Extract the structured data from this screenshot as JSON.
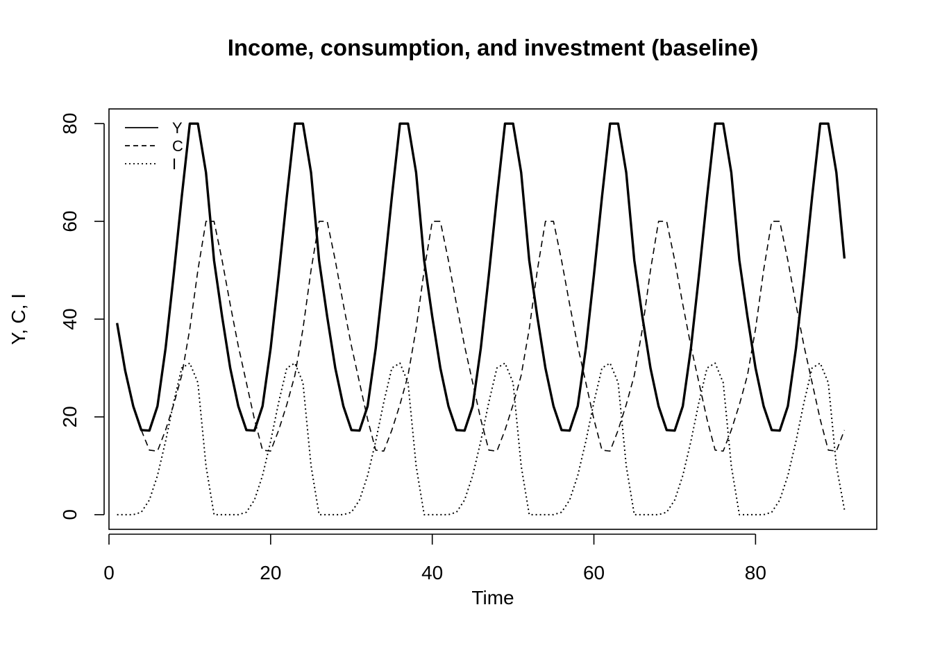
{
  "chart_data": {
    "type": "line",
    "title": "Income, consumption, and investment (baseline)",
    "xlabel": "Time",
    "ylabel": "Y, C, I",
    "xlim": [
      0,
      95
    ],
    "ylim": [
      -3,
      83
    ],
    "x_ticks": [
      0,
      20,
      40,
      60,
      80
    ],
    "y_ticks": [
      0,
      20,
      40,
      60,
      80
    ],
    "grid": false,
    "legend_position": "top-left",
    "cycle_period": 13,
    "x": [
      1,
      2,
      3,
      4,
      5,
      6,
      7,
      8,
      9,
      10,
      11,
      12,
      13,
      14,
      15,
      16,
      17,
      18,
      19,
      20,
      21,
      22,
      23,
      24,
      25,
      26,
      27,
      28,
      29,
      30,
      31,
      32,
      33,
      34,
      35,
      36,
      37,
      38,
      39,
      40,
      41,
      42,
      43,
      44,
      45,
      46,
      47,
      48,
      49,
      50,
      51,
      52,
      53,
      54,
      55,
      56,
      57,
      58,
      59,
      60,
      61,
      62,
      63,
      64,
      65,
      66,
      67,
      68,
      69,
      70,
      71,
      72,
      73,
      74,
      75,
      76,
      77,
      78,
      79,
      80,
      81,
      82,
      83,
      84,
      85,
      86,
      87,
      88,
      89,
      90,
      91
    ],
    "series": [
      {
        "name": "Y",
        "style": "solid",
        "color": "#000000",
        "values": [
          39.2,
          29.5,
          22.2,
          17.3,
          17.2,
          22.2,
          34,
          49,
          65,
          80,
          80,
          70,
          52,
          40.5,
          30,
          22.2,
          17.3,
          17.2,
          22.2,
          34,
          49,
          65,
          80,
          80,
          70,
          52,
          40.5,
          30,
          22.2,
          17.3,
          17.2,
          22.2,
          34,
          49,
          65,
          80,
          80,
          70,
          52,
          40.5,
          30,
          22.2,
          17.3,
          17.2,
          22.2,
          34,
          49,
          65,
          80,
          80,
          70,
          52,
          40.5,
          30,
          22.2,
          17.3,
          17.2,
          22.2,
          34,
          49,
          65,
          80,
          80,
          70,
          52,
          40.5,
          30,
          22.2,
          17.3,
          17.2,
          22.2,
          34,
          49,
          65,
          80,
          80,
          70,
          52,
          40.5,
          30,
          22.2,
          17.3,
          17.2,
          22.2,
          34,
          49,
          65,
          80,
          80,
          70,
          52.4
        ]
      },
      {
        "name": "C",
        "style": "dashed",
        "color": "#000000",
        "values": [
          null,
          null,
          null,
          17.3,
          13.2,
          13,
          17.3,
          22.5,
          28.5,
          38,
          50,
          60,
          60,
          52,
          43,
          34.5,
          27,
          19.5,
          13.2,
          13,
          17.3,
          22.5,
          28.5,
          38,
          50,
          60,
          60,
          52,
          43,
          34.5,
          27,
          19.5,
          13.2,
          13,
          17.3,
          22.5,
          28.5,
          38,
          50,
          60,
          60,
          52,
          43,
          34.5,
          27,
          19.5,
          13.2,
          13,
          17.3,
          22.5,
          28.5,
          38,
          50,
          60,
          60,
          52,
          43,
          34.5,
          27,
          19.5,
          13.2,
          13,
          17.3,
          22.5,
          28.5,
          38,
          50,
          60,
          60,
          52,
          43,
          34.5,
          27,
          19.5,
          13.2,
          13,
          17.3,
          22.5,
          28.5,
          38,
          50,
          60,
          60,
          52,
          43,
          34.5,
          27,
          19.5,
          13.2,
          13,
          17.3
        ]
      },
      {
        "name": "I",
        "style": "dotted",
        "color": "#000000",
        "values": [
          0,
          0,
          0,
          0.5,
          3,
          8,
          15,
          23,
          30,
          31,
          27,
          10,
          0,
          0,
          0,
          0,
          0.5,
          3,
          8,
          15,
          23,
          30,
          31,
          27,
          10,
          0,
          0,
          0,
          0,
          0.5,
          3,
          8,
          15,
          23,
          30,
          31,
          27,
          10,
          0,
          0,
          0,
          0,
          0.5,
          3,
          8,
          15,
          23,
          30,
          31,
          27,
          10,
          0,
          0,
          0,
          0,
          0.5,
          3,
          8,
          15,
          23,
          30,
          31,
          27,
          10,
          0,
          0,
          0,
          0,
          0.5,
          3,
          8,
          15,
          23,
          30,
          31,
          27,
          10,
          0,
          0,
          0,
          0,
          0.5,
          3,
          8,
          15,
          23,
          30,
          31,
          27,
          10,
          1
        ]
      }
    ],
    "legend": [
      {
        "label": "Y",
        "style": "solid"
      },
      {
        "label": "C",
        "style": "dashed"
      },
      {
        "label": "I",
        "style": "dotted"
      }
    ]
  }
}
